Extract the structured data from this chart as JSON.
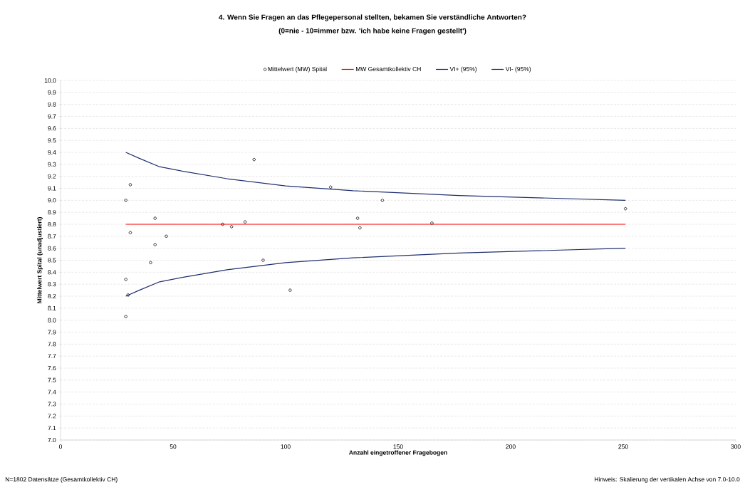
{
  "chart_data": {
    "type": "scatter",
    "title": "4. Wenn Sie Fragen an das Pflegepersonal stellten, bekamen Sie verständliche Antworten?",
    "subtitle": "(0=nie - 10=immer bzw. 'ich habe keine Fragen gestellt')",
    "xlabel": "Anzahl eingetroffener Fragebogen",
    "ylabel": "Mittelwert Spital (unadjustiert)",
    "annotations": [
      "N=1802 Datensätze (Gesamtkollektiv CH)",
      "Hinweis: Skalierung der vertikalen Achse von 7.0-10.0"
    ],
    "xlim": [
      0,
      300
    ],
    "ylim": [
      7.0,
      10.0
    ],
    "xticks": [
      0,
      50,
      100,
      150,
      200,
      250,
      300
    ],
    "yticks": [
      {
        "value": 7,
        "label": "7.0"
      },
      7.1,
      7.2,
      7.3,
      7.4,
      7.5,
      7.6,
      7.7,
      7.8,
      7.9,
      {
        "value": 8,
        "label": "8.0"
      },
      8.1,
      8.2,
      8.3,
      8.4,
      8.5,
      8.6,
      8.7,
      8.8,
      8.9,
      {
        "value": 9,
        "label": "9.0"
      },
      9.1,
      9.2,
      9.3,
      9.4,
      9.5,
      9.6,
      9.7,
      9.8,
      9.9,
      {
        "value": 10,
        "label": "10.0"
      }
    ],
    "grid": "y",
    "legend": "top",
    "series": [
      {
        "name": "Mittelwert (MW) Spital",
        "marker": "circle",
        "color": "#000000",
        "x": [
          29,
          31,
          29,
          30,
          29,
          31,
          42,
          42,
          40,
          47,
          72,
          76,
          82,
          86,
          90,
          102,
          120,
          143,
          132,
          133,
          165,
          251
        ],
        "values": [
          9.0,
          9.13,
          8.34,
          8.21,
          8.03,
          8.73,
          8.85,
          8.63,
          8.48,
          8.7,
          8.8,
          8.78,
          8.82,
          9.34,
          8.5,
          8.25,
          9.11,
          9.0,
          8.85,
          8.77,
          8.81,
          8.93
        ]
      },
      {
        "name": "MW Gesamtkollektiv CH",
        "type": "line",
        "marker": "none",
        "line_style": "solid",
        "color": "#ff0000",
        "x": [
          29,
          251
        ],
        "values": [
          8.8,
          8.8
        ]
      },
      {
        "name": "VI+ (95%)",
        "type": "line",
        "marker": "none",
        "line_style": "solid",
        "color": "#1f2f6e",
        "x": [
          29,
          35,
          44,
          55,
          74,
          100,
          130,
          177,
          251
        ],
        "values": [
          9.4,
          9.35,
          9.28,
          9.24,
          9.18,
          9.12,
          9.08,
          9.04,
          9.0
        ]
      },
      {
        "name": "VI- (95%)",
        "type": "line",
        "marker": "none",
        "line_style": "solid",
        "color": "#1f2f6e",
        "x": [
          29,
          35,
          44,
          55,
          74,
          100,
          130,
          177,
          251
        ],
        "values": [
          8.2,
          8.25,
          8.32,
          8.36,
          8.42,
          8.48,
          8.52,
          8.56,
          8.6
        ]
      }
    ]
  }
}
